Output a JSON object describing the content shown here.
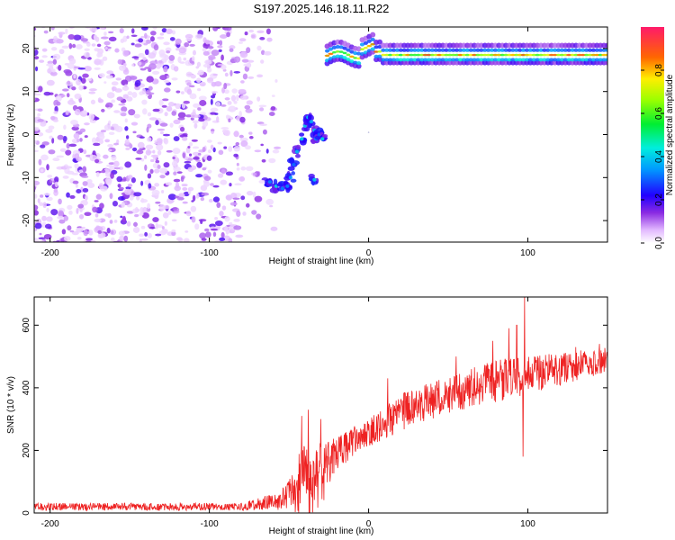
{
  "title": "S197.2025.146.18.11.R22",
  "chart_data": [
    {
      "type": "heatmap",
      "xlabel": "Height of straight line (km)",
      "ylabel": "Frequency (Hz)",
      "xlim": [
        -210,
        150
      ],
      "ylim": [
        -25,
        25
      ],
      "xticks": [
        -200,
        -100,
        0,
        100
      ],
      "yticks": [
        -20,
        -10,
        0,
        10,
        20
      ],
      "colorbar": {
        "label": "Normalized spectral amplitude",
        "range": [
          0,
          1
        ],
        "ticks": [
          "0.0",
          "0.2",
          "0.4",
          "0.6",
          "0.8"
        ]
      },
      "regions": [
        {
          "name": "noise",
          "x": [
            -210,
            -60
          ],
          "y": [
            -25,
            25
          ],
          "level": 0.15
        },
        {
          "name": "trace-low",
          "x": [
            -62,
            -40
          ],
          "y": [
            -14,
            -8
          ],
          "level": 0.35
        },
        {
          "name": "trace-mid",
          "x": [
            -42,
            -25
          ],
          "y": [
            -12,
            5
          ],
          "level": 0.3
        },
        {
          "name": "tone",
          "x": [
            -25,
            150
          ],
          "y": [
            17,
            21
          ],
          "level": 0.9
        }
      ]
    },
    {
      "type": "line",
      "xlabel": "Height of straight line (km)",
      "ylabel": "SNR (10 * v/v)",
      "xlim": [
        -210,
        150
      ],
      "ylim": [
        0,
        690
      ],
      "xticks": [
        -200,
        -100,
        0,
        100
      ],
      "yticks": [
        0,
        200,
        400,
        600
      ],
      "color": "#ee2222",
      "envelope": [
        {
          "x": -210,
          "mean": 20,
          "amp": 12
        },
        {
          "x": -150,
          "mean": 20,
          "amp": 12
        },
        {
          "x": -80,
          "mean": 20,
          "amp": 12
        },
        {
          "x": -55,
          "mean": 40,
          "amp": 30
        },
        {
          "x": -40,
          "mean": 110,
          "amp": 120
        },
        {
          "x": -30,
          "mean": 120,
          "amp": 110
        },
        {
          "x": -20,
          "mean": 190,
          "amp": 50
        },
        {
          "x": 0,
          "mean": 260,
          "amp": 50
        },
        {
          "x": 20,
          "mean": 320,
          "amp": 60
        },
        {
          "x": 50,
          "mean": 380,
          "amp": 60
        },
        {
          "x": 80,
          "mean": 420,
          "amp": 70
        },
        {
          "x": 100,
          "mean": 440,
          "amp": 60
        },
        {
          "x": 150,
          "mean": 490,
          "amp": 40
        }
      ],
      "spikes": [
        {
          "x": -42,
          "y": 310
        },
        {
          "x": -38,
          "y": 330
        },
        {
          "x": -30,
          "y": 300
        },
        {
          "x": -18,
          "y": 240
        },
        {
          "x": 12,
          "y": 430
        },
        {
          "x": 30,
          "y": 390
        },
        {
          "x": 55,
          "y": 500
        },
        {
          "x": 78,
          "y": 550
        },
        {
          "x": 88,
          "y": 590
        },
        {
          "x": 93,
          "y": 600
        },
        {
          "x": 98,
          "y": 690
        },
        {
          "x": 97,
          "y": 180
        },
        {
          "x": 130,
          "y": 530
        },
        {
          "x": 145,
          "y": 540
        }
      ]
    }
  ]
}
